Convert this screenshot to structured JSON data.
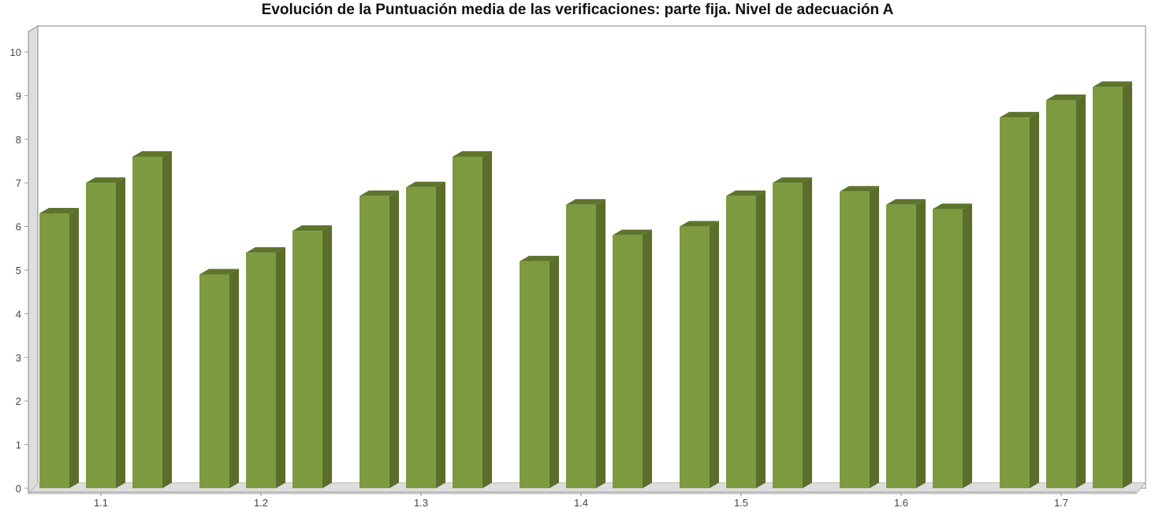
{
  "chart_data": {
    "type": "bar",
    "title": "Evolución de la Puntuación media de las verificaciones: parte fija. Nivel de adecuación A",
    "xlabel": "",
    "ylabel": "",
    "categories": [
      "1.1",
      "1.2",
      "1.3",
      "1.4",
      "1.5",
      "1.6",
      "1.7"
    ],
    "bars_per_category": 3,
    "values": [
      [
        6.3,
        7.0,
        7.6
      ],
      [
        4.9,
        5.4,
        5.9
      ],
      [
        6.7,
        6.9,
        7.6
      ],
      [
        5.2,
        6.5,
        5.8
      ],
      [
        6.0,
        6.7,
        7.0
      ],
      [
        6.8,
        6.5,
        6.4
      ],
      [
        8.5,
        8.9,
        9.2
      ]
    ],
    "ylim": [
      0,
      10
    ],
    "yticks": [
      "0",
      "1",
      "2",
      "3",
      "4",
      "5",
      "6",
      "7",
      "8",
      "9",
      "10"
    ],
    "grid": false,
    "legend": "none",
    "colors": {
      "bar_front": "#7e9a40",
      "bar_side": "#5a6e2a",
      "bar_top": "#5e742d",
      "plot_border": "#888888",
      "floor": "#dddddd"
    }
  }
}
